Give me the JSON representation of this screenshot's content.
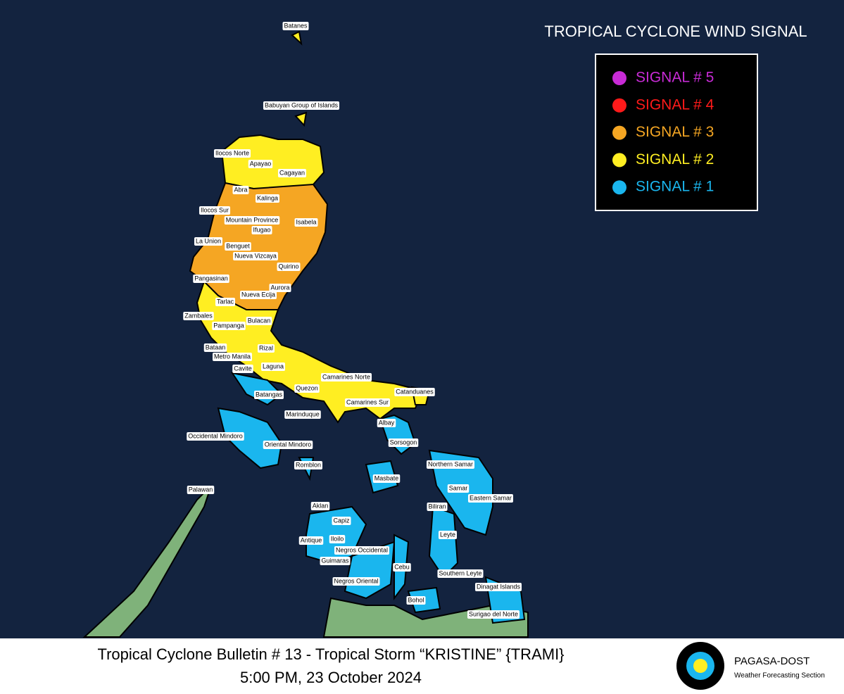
{
  "title": "TROPICAL CYCLONE WIND SIGNAL",
  "legend": [
    {
      "label": "SIGNAL # 5",
      "color": "#c82bd6"
    },
    {
      "label": "SIGNAL # 4",
      "color": "#ff1a1a"
    },
    {
      "label": "SIGNAL # 3",
      "color": "#f5a623"
    },
    {
      "label": "SIGNAL # 2",
      "color": "#ffee22"
    },
    {
      "label": "SIGNAL # 1",
      "color": "#1ab6ee"
    }
  ],
  "places": [
    "Batanes",
    "Babuyan Group of Islands",
    "Ilocos Norte",
    "Apayao",
    "Cagayan",
    "Abra",
    "Kalinga",
    "Ilocos Sur",
    "Mountain Province",
    "Isabela",
    "Ifugao",
    "La Union",
    "Benguet",
    "Nueva Vizcaya",
    "Quirino",
    "Pangasinan",
    "Aurora",
    "Nueva Ecija",
    "Tarlac",
    "Zambales",
    "Bulacan",
    "Pampanga",
    "Rizal",
    "Bataan",
    "Metro Manila",
    "Cavite",
    "Laguna",
    "Camarines Norte",
    "Quezon",
    "Catanduanes",
    "Batangas",
    "Camarines Sur",
    "Marinduque",
    "Albay",
    "Occidental Mindoro",
    "Oriental Mindoro",
    "Sorsogon",
    "Northern Samar",
    "Romblon",
    "Masbate",
    "Samar",
    "Palawan",
    "Eastern Samar",
    "Biliran",
    "Aklan",
    "Capiz",
    "Leyte",
    "Antique",
    "Iloilo",
    "Negros Occidental",
    "Guimaras",
    "Cebu",
    "Southern Leyte",
    "Negros Oriental",
    "Dinagat Islands",
    "Bohol",
    "Surigao del Norte"
  ],
  "footer": {
    "bulletin": "Tropical Cyclone Bulletin # 13 - Tropical Storm “KRISTINE” {TRAMI}",
    "time": "5:00 PM, 23 October 2024"
  },
  "agency": {
    "name": "PAGASA-DOST",
    "section": "Weather Forecasting Section"
  }
}
